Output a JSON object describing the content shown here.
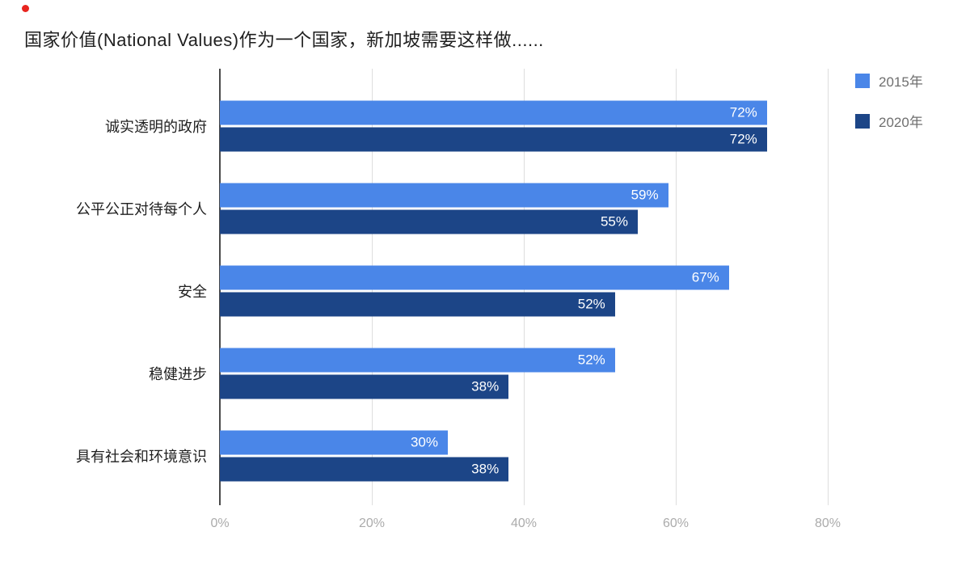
{
  "decor": {
    "red_dot_color": "#e8251f"
  },
  "title": "国家价值(National Values)作为一个国家，新加坡需要这样做......",
  "chart_data": {
    "type": "bar",
    "orientation": "horizontal",
    "title": "国家价值(National Values)作为一个国家，新加坡需要这样做......",
    "categories": [
      "诚实透明的政府",
      "公平公正对待每个人",
      "安全",
      "稳健进步",
      "具有社会和环境意识"
    ],
    "series": [
      {
        "name": "2015年",
        "color": "#4a86e8",
        "values": [
          72,
          59,
          67,
          52,
          30
        ]
      },
      {
        "name": "2020年",
        "color": "#1c4587",
        "values": [
          72,
          55,
          52,
          38,
          38
        ]
      }
    ],
    "value_suffix": "%",
    "x_ticks": [
      {
        "value": 0,
        "label": "0%"
      },
      {
        "value": 20,
        "label": "20%"
      },
      {
        "value": 40,
        "label": "40%"
      },
      {
        "value": 60,
        "label": "60%"
      },
      {
        "value": 80,
        "label": "80%"
      }
    ],
    "xlim": [
      0,
      85
    ],
    "grid": true,
    "legend_position": "top-right"
  }
}
